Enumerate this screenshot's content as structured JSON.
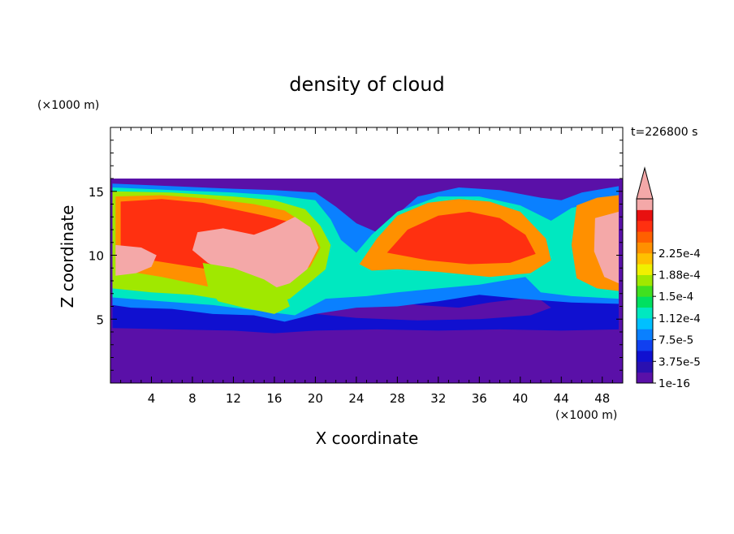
{
  "chart_data": {
    "type": "heatmap",
    "title": "density of cloud",
    "xlabel": "X coordinate",
    "ylabel": "Z coordinate",
    "x_unit": "(×1000 m)",
    "y_unit": "(×1000 m)",
    "time_label": "t=226800 s",
    "xlim": [
      0,
      50
    ],
    "ylim": [
      0,
      20
    ],
    "data_top": 16,
    "x_ticks": [
      "4",
      "8",
      "12",
      "16",
      "20",
      "24",
      "28",
      "32",
      "36",
      "40",
      "44",
      "48"
    ],
    "x_tick_values": [
      4,
      8,
      12,
      16,
      20,
      24,
      28,
      32,
      36,
      40,
      44,
      48
    ],
    "y_ticks": [
      "5",
      "10",
      "15"
    ],
    "y_tick_values": [
      5,
      10,
      15
    ],
    "colorbar": {
      "labels": [
        "2.25e-4",
        "1.88e-4",
        "1.5e-4",
        "1.12e-4",
        "7.5e-5",
        "3.75e-5",
        "1e-16"
      ],
      "label_levels": [
        12,
        10,
        8,
        6,
        4,
        2,
        0
      ],
      "colors": [
        "#5a10a8",
        "#2a10b0",
        "#1010d0",
        "#1040f0",
        "#0a80ff",
        "#00c0ff",
        "#00e8c0",
        "#00e060",
        "#40e020",
        "#a0e800",
        "#f0f000",
        "#ffc000",
        "#ff9000",
        "#ff6000",
        "#ff3010",
        "#e81010",
        "#f4a8a8"
      ],
      "extend_color": "#f4a8a8"
    },
    "cloud_layers": [
      {
        "level": 1,
        "color": "#1010d0",
        "region": [
          [
            0.2,
            8.3
          ],
          [
            3,
            7.6
          ],
          [
            6,
            7.4
          ],
          [
            10,
            6.9
          ],
          [
            14,
            6.6
          ],
          [
            18,
            6.5
          ],
          [
            22,
            6.6
          ],
          [
            26,
            6.8
          ],
          [
            30,
            7.2
          ],
          [
            34,
            7.5
          ],
          [
            38,
            7.7
          ],
          [
            42,
            7.5
          ],
          [
            46,
            7.1
          ],
          [
            49.6,
            6.8
          ],
          [
            49.6,
            4.2
          ],
          [
            44,
            4.1
          ],
          [
            38,
            4.2
          ],
          [
            32,
            4.1
          ],
          [
            26,
            4.2
          ],
          [
            20,
            4.1
          ],
          [
            16,
            3.9
          ],
          [
            12,
            4.1
          ],
          [
            6,
            4.2
          ],
          [
            0.2,
            4.3
          ]
        ]
      },
      {
        "level": 0,
        "color": "#5a10a8",
        "region": [
          [
            18,
            6.7
          ],
          [
            22,
            6.9
          ],
          [
            26,
            6.6
          ],
          [
            30,
            6.1
          ],
          [
            34,
            5.9
          ],
          [
            37,
            6.3
          ],
          [
            40,
            6.6
          ],
          [
            42,
            6.5
          ],
          [
            43,
            5.9
          ],
          [
            41,
            5.3
          ],
          [
            36,
            5.0
          ],
          [
            30,
            4.9
          ],
          [
            24,
            5.1
          ],
          [
            20,
            5.4
          ],
          [
            17.5,
            5.9
          ]
        ]
      },
      {
        "level": 4,
        "color": "#0a80ff",
        "region": [
          [
            0.2,
            15.6
          ],
          [
            6,
            15.4
          ],
          [
            12,
            15.2
          ],
          [
            16,
            15.1
          ],
          [
            20,
            14.9
          ],
          [
            22,
            13.8
          ],
          [
            24,
            12.5
          ],
          [
            26,
            11.8
          ],
          [
            28,
            13.2
          ],
          [
            30,
            14.6
          ],
          [
            34,
            15.3
          ],
          [
            38,
            15.1
          ],
          [
            42,
            14.5
          ],
          [
            44,
            14.3
          ],
          [
            46,
            14.9
          ],
          [
            49.6,
            15.4
          ],
          [
            49.6,
            6.2
          ],
          [
            45,
            6.3
          ],
          [
            40,
            6.6
          ],
          [
            36,
            6.9
          ],
          [
            32,
            6.4
          ],
          [
            28,
            6.0
          ],
          [
            24,
            5.9
          ],
          [
            20,
            5.4
          ],
          [
            17,
            4.8
          ],
          [
            14,
            5.3
          ],
          [
            10,
            5.4
          ],
          [
            6,
            5.8
          ],
          [
            2,
            5.9
          ],
          [
            0.2,
            6.1
          ]
        ]
      },
      {
        "level": 6,
        "color": "#00e8c0",
        "region": [
          [
            0.2,
            15.3
          ],
          [
            6,
            15.1
          ],
          [
            12,
            14.9
          ],
          [
            16,
            14.7
          ],
          [
            20,
            14.3
          ],
          [
            21.5,
            12.8
          ],
          [
            22.5,
            11.2
          ],
          [
            24,
            10.2
          ],
          [
            25.5,
            11.6
          ],
          [
            28,
            13.4
          ],
          [
            32,
            14.6
          ],
          [
            36,
            14.6
          ],
          [
            40,
            13.9
          ],
          [
            43,
            12.7
          ],
          [
            45,
            13.7
          ],
          [
            49.6,
            14.6
          ],
          [
            49.6,
            6.6
          ],
          [
            45,
            6.8
          ],
          [
            42,
            7.1
          ],
          [
            40.5,
            8.3
          ],
          [
            36,
            7.7
          ],
          [
            32,
            7.4
          ],
          [
            28,
            7.1
          ],
          [
            25,
            6.8
          ],
          [
            21,
            6.6
          ],
          [
            18,
            5.3
          ],
          [
            15,
            5.6
          ],
          [
            10,
            6.1
          ],
          [
            5,
            6.4
          ],
          [
            0.2,
            6.7
          ]
        ]
      },
      {
        "level": 9,
        "color": "#a0e800",
        "region": [
          [
            0.2,
            15.0
          ],
          [
            6,
            14.9
          ],
          [
            12,
            14.6
          ],
          [
            16,
            14.3
          ],
          [
            19,
            13.6
          ],
          [
            20.5,
            12.3
          ],
          [
            21.5,
            10.8
          ],
          [
            21,
            8.9
          ],
          [
            19.5,
            7.9
          ],
          [
            17.5,
            6.6
          ],
          [
            15,
            6.0
          ],
          [
            12,
            6.4
          ],
          [
            8,
            6.9
          ],
          [
            4,
            7.1
          ],
          [
            0.2,
            7.4
          ]
        ]
      },
      {
        "level": 12,
        "color": "#ff9000",
        "region": [
          [
            0.5,
            14.6
          ],
          [
            5,
            14.7
          ],
          [
            10,
            14.4
          ],
          [
            14,
            14.0
          ],
          [
            17,
            13.5
          ],
          [
            19.5,
            12.2
          ],
          [
            20.5,
            10.6
          ],
          [
            19.5,
            9.1
          ],
          [
            17,
            8.1
          ],
          [
            14,
            7.5
          ],
          [
            11,
            7.3
          ],
          [
            8,
            7.8
          ],
          [
            5,
            8.3
          ],
          [
            2,
            8.7
          ],
          [
            0.5,
            9.0
          ]
        ]
      },
      {
        "level": 14,
        "color": "#ff3010",
        "region": [
          [
            1,
            14.2
          ],
          [
            5,
            14.4
          ],
          [
            9,
            14.1
          ],
          [
            12,
            13.6
          ],
          [
            15,
            13.1
          ],
          [
            18,
            12.5
          ],
          [
            19.5,
            11.0
          ],
          [
            18.5,
            9.6
          ],
          [
            16,
            8.8
          ],
          [
            12,
            8.6
          ],
          [
            8,
            9.1
          ],
          [
            4,
            9.6
          ],
          [
            1,
            10.1
          ]
        ]
      },
      {
        "level": 16,
        "color": "#f4a8a8",
        "region": [
          [
            8.5,
            11.8
          ],
          [
            11,
            12.1
          ],
          [
            14,
            11.6
          ],
          [
            16,
            12.2
          ],
          [
            18,
            13.0
          ],
          [
            19.5,
            12.2
          ],
          [
            20.3,
            10.6
          ],
          [
            19.2,
            8.9
          ],
          [
            17.5,
            7.8
          ],
          [
            15.5,
            7.3
          ],
          [
            13,
            7.6
          ],
          [
            11,
            8.8
          ],
          [
            9.5,
            9.4
          ],
          [
            8,
            10.4
          ]
        ]
      },
      {
        "level": 16,
        "color": "#f4a8a8",
        "region": [
          [
            0.5,
            10.8
          ],
          [
            3,
            10.6
          ],
          [
            4.5,
            10.0
          ],
          [
            4,
            9.1
          ],
          [
            2.5,
            8.6
          ],
          [
            0.5,
            8.4
          ]
        ]
      },
      {
        "level": 12,
        "color": "#ff9000",
        "region": [
          [
            24.3,
            9.3
          ],
          [
            26,
            11.3
          ],
          [
            28,
            13.1
          ],
          [
            31,
            14.1
          ],
          [
            34,
            14.4
          ],
          [
            37,
            14.2
          ],
          [
            40,
            13.4
          ],
          [
            42.5,
            11.3
          ],
          [
            43,
            9.6
          ],
          [
            41,
            8.6
          ],
          [
            37,
            8.3
          ],
          [
            32,
            8.7
          ],
          [
            28,
            8.9
          ],
          [
            25.5,
            8.8
          ]
        ]
      },
      {
        "level": 14,
        "color": "#ff3010",
        "region": [
          [
            27,
            10.2
          ],
          [
            29,
            12.0
          ],
          [
            32,
            13.1
          ],
          [
            35,
            13.4
          ],
          [
            38,
            12.9
          ],
          [
            40.5,
            11.6
          ],
          [
            41.5,
            10.1
          ],
          [
            39,
            9.4
          ],
          [
            35,
            9.3
          ],
          [
            31,
            9.6
          ]
        ]
      },
      {
        "level": 12,
        "color": "#ff9000",
        "region": [
          [
            45.5,
            13.9
          ],
          [
            47.5,
            14.5
          ],
          [
            49.6,
            14.7
          ],
          [
            49.6,
            7.2
          ],
          [
            47.5,
            7.4
          ],
          [
            45.5,
            8.2
          ],
          [
            45,
            10.8
          ]
        ]
      },
      {
        "level": 16,
        "color": "#f4a8a8",
        "region": [
          [
            47.3,
            12.9
          ],
          [
            49.6,
            13.4
          ],
          [
            49.6,
            7.8
          ],
          [
            48.2,
            8.3
          ],
          [
            47.2,
            10.3
          ]
        ]
      },
      {
        "level": 9,
        "color": "#a0e800",
        "region": [
          [
            9,
            9.4
          ],
          [
            12,
            9.0
          ],
          [
            15,
            8.1
          ],
          [
            17,
            7.1
          ],
          [
            17.5,
            6.0
          ],
          [
            16,
            5.4
          ],
          [
            13,
            5.9
          ],
          [
            10.5,
            6.4
          ],
          [
            9.5,
            7.6
          ]
        ]
      }
    ]
  }
}
